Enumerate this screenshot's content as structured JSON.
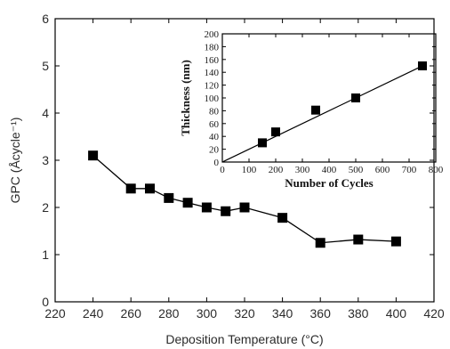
{
  "chart_data": [
    {
      "type": "line",
      "title": "",
      "xlabel": "Deposition Temperature (°C)",
      "ylabel": "GPC (Åcycle⁻¹)",
      "xlim": [
        220,
        420
      ],
      "ylim": [
        0,
        6
      ],
      "xticks": [
        220,
        240,
        260,
        280,
        300,
        320,
        340,
        360,
        380,
        400,
        420
      ],
      "yticks": [
        0,
        1,
        2,
        3,
        4,
        5,
        6
      ],
      "grid": false,
      "marker": "square",
      "series": [
        {
          "x": [
            240,
            260,
            270,
            280,
            290,
            300,
            310,
            320,
            340,
            360,
            380,
            400
          ],
          "y": [
            3.1,
            2.4,
            2.4,
            2.2,
            2.1,
            2.0,
            1.92,
            2.0,
            1.78,
            1.25,
            1.32,
            1.28
          ]
        }
      ],
      "colors": {
        "line": "#000000",
        "marker": "#000000"
      }
    },
    {
      "type": "scatter",
      "title": "",
      "xlabel": "Number of Cycles",
      "ylabel": "Thickness (nm)",
      "xlim": [
        0,
        800
      ],
      "ylim": [
        0,
        200
      ],
      "xticks": [
        0,
        100,
        200,
        300,
        400,
        500,
        600,
        700,
        800
      ],
      "yticks": [
        0,
        20,
        40,
        60,
        80,
        100,
        120,
        140,
        160,
        180,
        200
      ],
      "grid": false,
      "marker": "square",
      "series": [
        {
          "x": [
            150,
            200,
            350,
            500,
            750
          ],
          "y": [
            30,
            47,
            81,
            100,
            150
          ]
        }
      ],
      "fit_line": {
        "x": [
          0,
          760
        ],
        "y": [
          0,
          152
        ]
      },
      "colors": {
        "line": "#000000",
        "marker": "#000000"
      }
    }
  ]
}
